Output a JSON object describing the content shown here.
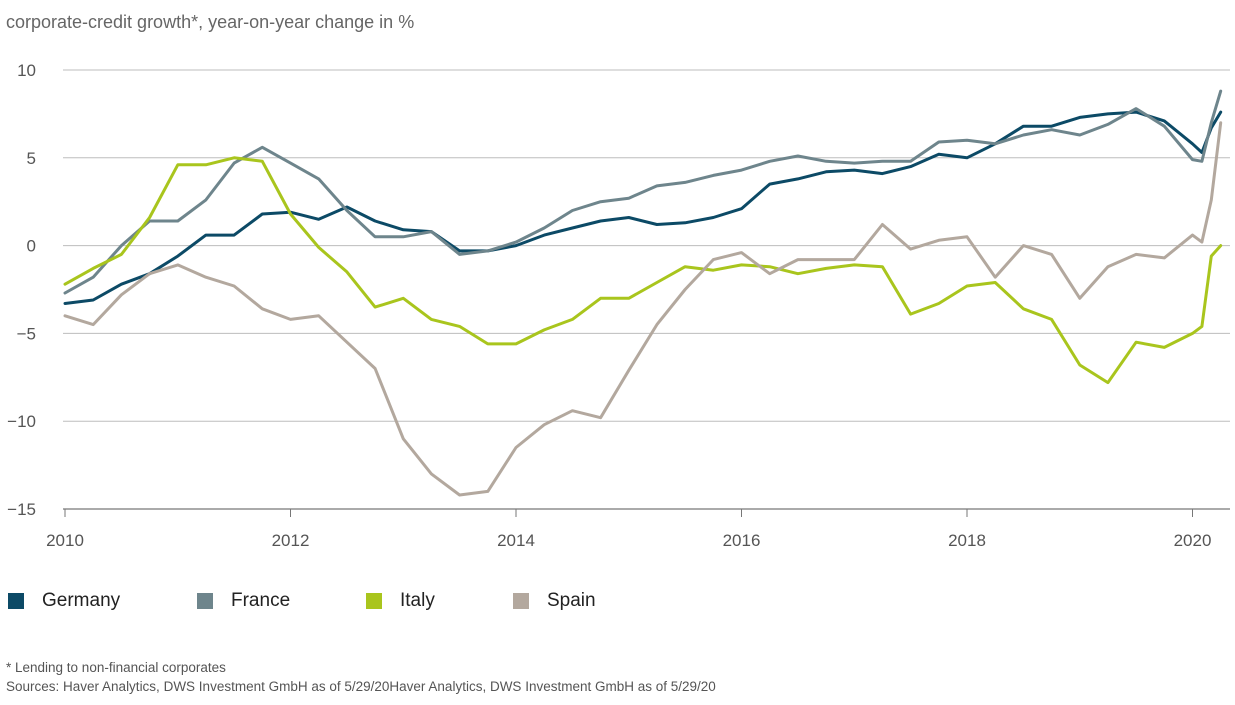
{
  "chart_data": {
    "type": "line",
    "title": "corporate-credit growth*, year-on-year change in %",
    "xlabel": "",
    "ylabel": "",
    "x_start": "2010-01",
    "x_end": "2020-04",
    "x_ticks": [
      "2010",
      "2012",
      "2014",
      "2016",
      "2018",
      "2020"
    ],
    "ylim": [
      -15,
      10
    ],
    "y_ticks": [
      "10",
      "5",
      "0",
      "−5",
      "−10",
      "−15"
    ],
    "grid": "horizontal",
    "legend_position": "bottom-left",
    "series": [
      {
        "name": "Germany",
        "color": "#0c4a66",
        "points": [
          [
            "2010-01",
            -3.3
          ],
          [
            "2010-04",
            -3.1
          ],
          [
            "2010-07",
            -2.2
          ],
          [
            "2010-10",
            -1.6
          ],
          [
            "2011-01",
            -0.6
          ],
          [
            "2011-04",
            0.6
          ],
          [
            "2011-07",
            0.6
          ],
          [
            "2011-10",
            1.8
          ],
          [
            "2012-01",
            1.9
          ],
          [
            "2012-04",
            1.5
          ],
          [
            "2012-07",
            2.2
          ],
          [
            "2012-10",
            1.4
          ],
          [
            "2013-01",
            0.9
          ],
          [
            "2013-04",
            0.8
          ],
          [
            "2013-07",
            -0.3
          ],
          [
            "2013-10",
            -0.3
          ],
          [
            "2014-01",
            0.0
          ],
          [
            "2014-04",
            0.6
          ],
          [
            "2014-07",
            1.0
          ],
          [
            "2014-10",
            1.4
          ],
          [
            "2015-01",
            1.6
          ],
          [
            "2015-04",
            1.2
          ],
          [
            "2015-07",
            1.3
          ],
          [
            "2015-10",
            1.6
          ],
          [
            "2016-01",
            2.1
          ],
          [
            "2016-04",
            3.5
          ],
          [
            "2016-07",
            3.8
          ],
          [
            "2016-10",
            4.2
          ],
          [
            "2017-01",
            4.3
          ],
          [
            "2017-04",
            4.1
          ],
          [
            "2017-07",
            4.5
          ],
          [
            "2017-10",
            5.2
          ],
          [
            "2018-01",
            5.0
          ],
          [
            "2018-04",
            5.8
          ],
          [
            "2018-07",
            6.8
          ],
          [
            "2018-10",
            6.8
          ],
          [
            "2019-01",
            7.3
          ],
          [
            "2019-04",
            7.5
          ],
          [
            "2019-07",
            7.6
          ],
          [
            "2019-10",
            7.1
          ],
          [
            "2020-01",
            5.8
          ],
          [
            "2020-02",
            5.3
          ],
          [
            "2020-03",
            6.7
          ],
          [
            "2020-04",
            7.6
          ]
        ]
      },
      {
        "name": "France",
        "color": "#6e858c",
        "points": [
          [
            "2010-01",
            -2.7
          ],
          [
            "2010-04",
            -1.8
          ],
          [
            "2010-07",
            0.0
          ],
          [
            "2010-10",
            1.4
          ],
          [
            "2011-01",
            1.4
          ],
          [
            "2011-04",
            2.6
          ],
          [
            "2011-07",
            4.7
          ],
          [
            "2011-10",
            5.6
          ],
          [
            "2012-01",
            4.7
          ],
          [
            "2012-04",
            3.8
          ],
          [
            "2012-07",
            2.0
          ],
          [
            "2012-10",
            0.5
          ],
          [
            "2013-01",
            0.5
          ],
          [
            "2013-04",
            0.8
          ],
          [
            "2013-07",
            -0.5
          ],
          [
            "2013-10",
            -0.3
          ],
          [
            "2014-01",
            0.2
          ],
          [
            "2014-04",
            1.0
          ],
          [
            "2014-07",
            2.0
          ],
          [
            "2014-10",
            2.5
          ],
          [
            "2015-01",
            2.7
          ],
          [
            "2015-04",
            3.4
          ],
          [
            "2015-07",
            3.6
          ],
          [
            "2015-10",
            4.0
          ],
          [
            "2016-01",
            4.3
          ],
          [
            "2016-04",
            4.8
          ],
          [
            "2016-07",
            5.1
          ],
          [
            "2016-10",
            4.8
          ],
          [
            "2017-01",
            4.7
          ],
          [
            "2017-04",
            4.8
          ],
          [
            "2017-07",
            4.8
          ],
          [
            "2017-10",
            5.9
          ],
          [
            "2018-01",
            6.0
          ],
          [
            "2018-04",
            5.8
          ],
          [
            "2018-07",
            6.3
          ],
          [
            "2018-10",
            6.6
          ],
          [
            "2019-01",
            6.3
          ],
          [
            "2019-04",
            6.9
          ],
          [
            "2019-07",
            7.8
          ],
          [
            "2019-10",
            6.8
          ],
          [
            "2020-01",
            4.9
          ],
          [
            "2020-02",
            4.8
          ],
          [
            "2020-03",
            7.0
          ],
          [
            "2020-04",
            8.8
          ]
        ]
      },
      {
        "name": "Italy",
        "color": "#a9c51d",
        "points": [
          [
            "2010-01",
            -2.2
          ],
          [
            "2010-04",
            -1.3
          ],
          [
            "2010-07",
            -0.5
          ],
          [
            "2010-10",
            1.6
          ],
          [
            "2011-01",
            4.6
          ],
          [
            "2011-04",
            4.6
          ],
          [
            "2011-07",
            5.0
          ],
          [
            "2011-10",
            4.8
          ],
          [
            "2012-01",
            1.8
          ],
          [
            "2012-04",
            -0.1
          ],
          [
            "2012-07",
            -1.5
          ],
          [
            "2012-10",
            -3.5
          ],
          [
            "2013-01",
            -3.0
          ],
          [
            "2013-04",
            -4.2
          ],
          [
            "2013-07",
            -4.6
          ],
          [
            "2013-10",
            -5.6
          ],
          [
            "2014-01",
            -5.6
          ],
          [
            "2014-04",
            -4.8
          ],
          [
            "2014-07",
            -4.2
          ],
          [
            "2014-10",
            -3.0
          ],
          [
            "2015-01",
            -3.0
          ],
          [
            "2015-04",
            -2.1
          ],
          [
            "2015-07",
            -1.2
          ],
          [
            "2015-10",
            -1.4
          ],
          [
            "2016-01",
            -1.1
          ],
          [
            "2016-04",
            -1.2
          ],
          [
            "2016-07",
            -1.6
          ],
          [
            "2016-10",
            -1.3
          ],
          [
            "2017-01",
            -1.1
          ],
          [
            "2017-04",
            -1.2
          ],
          [
            "2017-07",
            -3.9
          ],
          [
            "2017-10",
            -3.3
          ],
          [
            "2018-01",
            -2.3
          ],
          [
            "2018-04",
            -2.1
          ],
          [
            "2018-07",
            -3.6
          ],
          [
            "2018-10",
            -4.2
          ],
          [
            "2019-01",
            -6.8
          ],
          [
            "2019-04",
            -7.8
          ],
          [
            "2019-07",
            -5.5
          ],
          [
            "2019-10",
            -5.8
          ],
          [
            "2020-01",
            -5.0
          ],
          [
            "2020-02",
            -4.6
          ],
          [
            "2020-03",
            -0.6
          ],
          [
            "2020-04",
            0.0
          ]
        ]
      },
      {
        "name": "Spain",
        "color": "#b3a89e",
        "points": [
          [
            "2010-01",
            -4.0
          ],
          [
            "2010-04",
            -4.5
          ],
          [
            "2010-07",
            -2.8
          ],
          [
            "2010-10",
            -1.6
          ],
          [
            "2011-01",
            -1.1
          ],
          [
            "2011-04",
            -1.8
          ],
          [
            "2011-07",
            -2.3
          ],
          [
            "2011-10",
            -3.6
          ],
          [
            "2012-01",
            -4.2
          ],
          [
            "2012-04",
            -4.0
          ],
          [
            "2012-07",
            -5.5
          ],
          [
            "2012-10",
            -7.0
          ],
          [
            "2013-01",
            -11.0
          ],
          [
            "2013-04",
            -13.0
          ],
          [
            "2013-07",
            -14.2
          ],
          [
            "2013-10",
            -14.0
          ],
          [
            "2014-01",
            -11.5
          ],
          [
            "2014-04",
            -10.2
          ],
          [
            "2014-07",
            -9.4
          ],
          [
            "2014-10",
            -9.8
          ],
          [
            "2015-01",
            -7.1
          ],
          [
            "2015-04",
            -4.5
          ],
          [
            "2015-07",
            -2.5
          ],
          [
            "2015-10",
            -0.8
          ],
          [
            "2016-01",
            -0.4
          ],
          [
            "2016-04",
            -1.6
          ],
          [
            "2016-07",
            -0.8
          ],
          [
            "2016-10",
            -0.8
          ],
          [
            "2017-01",
            -0.8
          ],
          [
            "2017-04",
            1.2
          ],
          [
            "2017-07",
            -0.2
          ],
          [
            "2017-10",
            0.3
          ],
          [
            "2018-01",
            0.5
          ],
          [
            "2018-04",
            -1.8
          ],
          [
            "2018-07",
            0.0
          ],
          [
            "2018-10",
            -0.5
          ],
          [
            "2019-01",
            -3.0
          ],
          [
            "2019-04",
            -1.2
          ],
          [
            "2019-07",
            -0.5
          ],
          [
            "2019-10",
            -0.7
          ],
          [
            "2020-01",
            0.6
          ],
          [
            "2020-02",
            0.2
          ],
          [
            "2020-03",
            2.6
          ],
          [
            "2020-04",
            7.0
          ]
        ]
      }
    ],
    "footnote": "* Lending to non-financial corporates",
    "sources": "Sources: Haver Analytics, DWS Investment GmbH as of 5/29/20Haver Analytics, DWS Investment GmbH as of 5/29/20"
  }
}
